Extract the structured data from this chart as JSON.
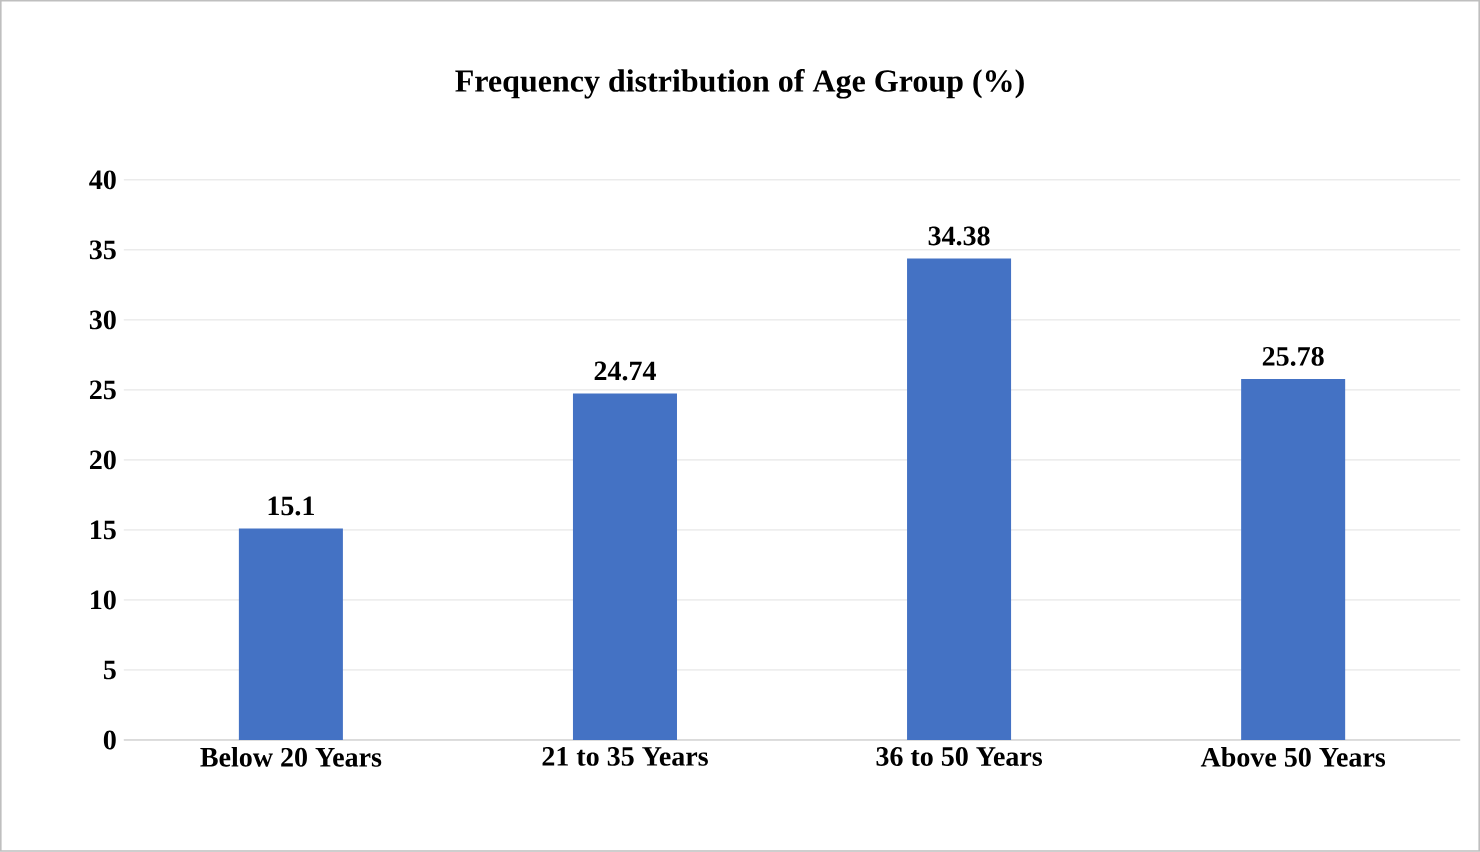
{
  "chart_data": {
    "type": "bar",
    "title": "Frequency distribution of Age Group (%)",
    "categories": [
      "Below 20 Years",
      "21 to 35 Years",
      "36 to 50 Years",
      "Above 50 Years"
    ],
    "values": [
      15.1,
      24.74,
      34.38,
      25.78
    ],
    "color": "#4472c4",
    "ylim": [
      0,
      40
    ],
    "yticks": [
      0,
      5,
      10,
      15,
      20,
      25,
      30,
      35,
      40
    ],
    "grid": "y",
    "data_labels": true
  }
}
